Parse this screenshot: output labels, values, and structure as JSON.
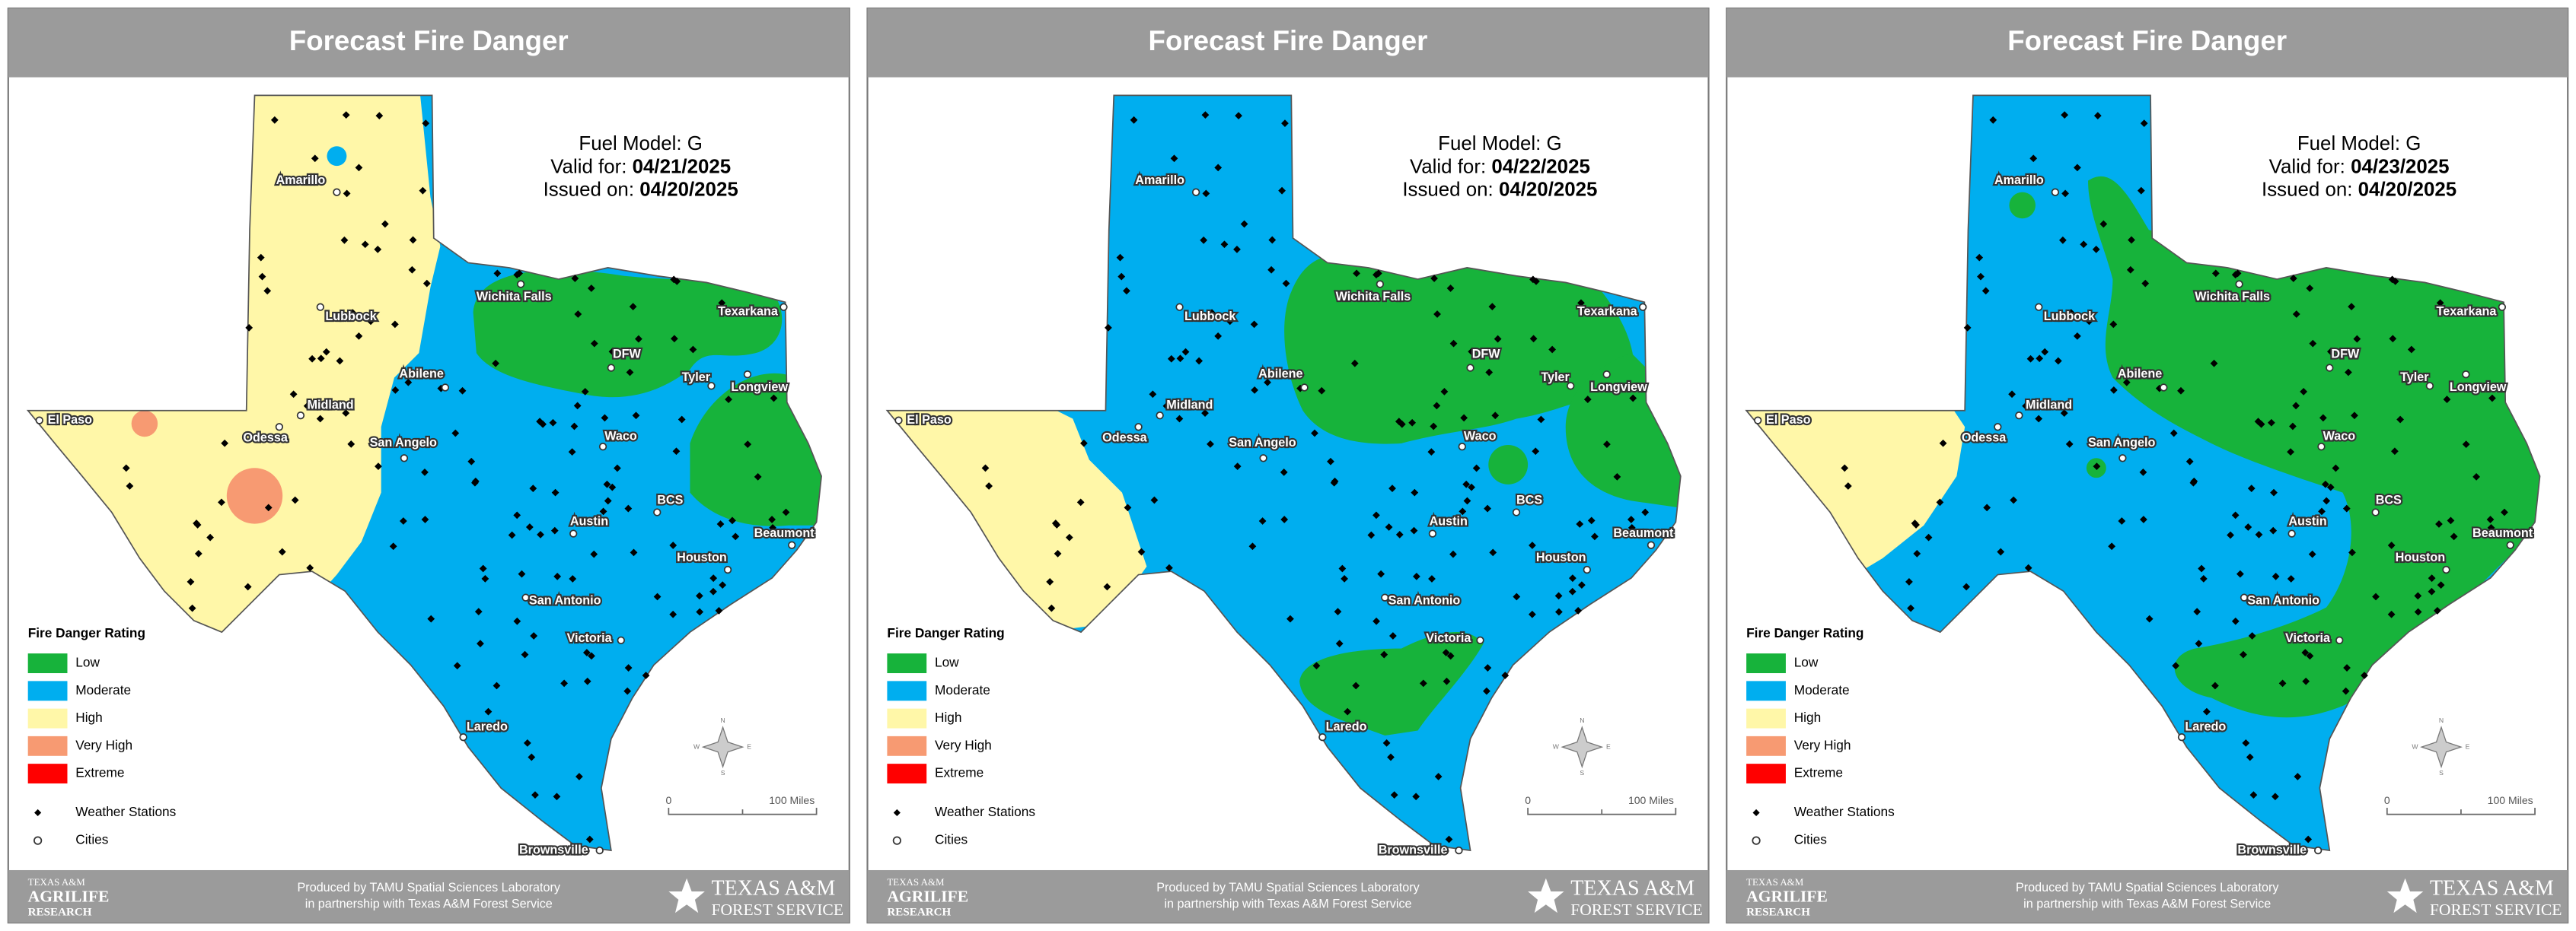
{
  "panels": [
    {
      "title": "Forecast Fire Danger",
      "fuel_model": "Fuel Model: G",
      "valid_label": "Valid for:",
      "valid_date": "04/21/2025",
      "issued_label": "Issued on:",
      "issued_date": "04/20/2025"
    },
    {
      "title": "Forecast Fire Danger",
      "fuel_model": "Fuel Model: G",
      "valid_label": "Valid for:",
      "valid_date": "04/22/2025",
      "issued_label": "Issued on:",
      "issued_date": "04/20/2025"
    },
    {
      "title": "Forecast Fire Danger",
      "fuel_model": "Fuel Model: G",
      "valid_label": "Valid for:",
      "valid_date": "04/23/2025",
      "issued_label": "Issued on:",
      "issued_date": "04/20/2025"
    }
  ],
  "cities": [
    "Amarillo",
    "Lubbock",
    "Midland",
    "Odessa",
    "El Paso",
    "Wichita Falls",
    "DFW",
    "Abilene",
    "Tyler",
    "Longview",
    "Texarkana",
    "San Angelo",
    "Waco",
    "BCS",
    "Austin",
    "Beaumont",
    "Houston",
    "San Antonio",
    "Victoria",
    "Laredo",
    "Brownsville"
  ],
  "legend": {
    "title": "Fire Danger Rating",
    "items": [
      "Low",
      "Moderate",
      "High",
      "Very High",
      "Extreme"
    ],
    "stations": "Weather Stations",
    "cities": "Cities"
  },
  "scale": {
    "start": "0",
    "end": "100 Miles"
  },
  "compass": [
    "N",
    "E",
    "S",
    "W"
  ],
  "footer": {
    "line1": "Produced by TAMU Spatial Sciences Laboratory",
    "line2": "in partnership with Texas A&M Forest Service",
    "agrilife": [
      "TEXAS A&M",
      "AGRILIFE",
      "RESEARCH"
    ],
    "forest": [
      "TEXAS A&M",
      "FOREST SERVICE"
    ]
  }
}
